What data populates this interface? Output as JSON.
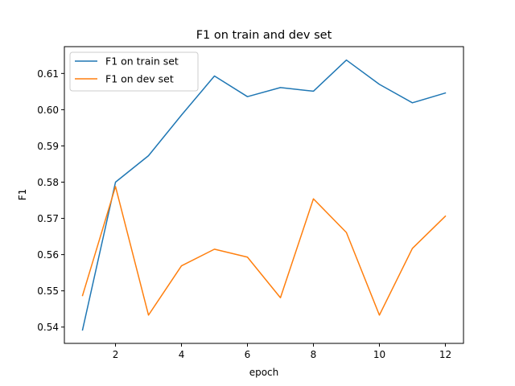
{
  "chart_data": {
    "type": "line",
    "title": "F1 on train and dev set",
    "xlabel": "epoch",
    "ylabel": "F1",
    "xlim": [
      0.45,
      12.55
    ],
    "ylim": [
      0.5355,
      0.6174
    ],
    "xticks": [
      2,
      4,
      6,
      8,
      10,
      12
    ],
    "yticks": [
      0.54,
      0.55,
      0.56,
      0.57,
      0.58,
      0.59,
      0.6,
      0.61
    ],
    "ytick_labels": [
      "0.54",
      "0.55",
      "0.56",
      "0.57",
      "0.58",
      "0.59",
      "0.60",
      "0.61"
    ],
    "grid": false,
    "legend_position": "top-left",
    "x": [
      1,
      2,
      3,
      4,
      5,
      6,
      7,
      8,
      9,
      10,
      11,
      12
    ],
    "series": [
      {
        "name": "F1 on train set",
        "color": "#1f77b4",
        "values": [
          0.5392,
          0.58,
          0.5873,
          0.5985,
          0.6093,
          0.6036,
          0.6061,
          0.6051,
          0.6137,
          0.607,
          0.6019,
          0.6046
        ]
      },
      {
        "name": "F1 on dev set",
        "color": "#ff7f0e",
        "values": [
          0.5487,
          0.5788,
          0.5433,
          0.5569,
          0.5615,
          0.5593,
          0.5481,
          0.5754,
          0.5661,
          0.5433,
          0.5617,
          0.5706
        ]
      }
    ]
  }
}
